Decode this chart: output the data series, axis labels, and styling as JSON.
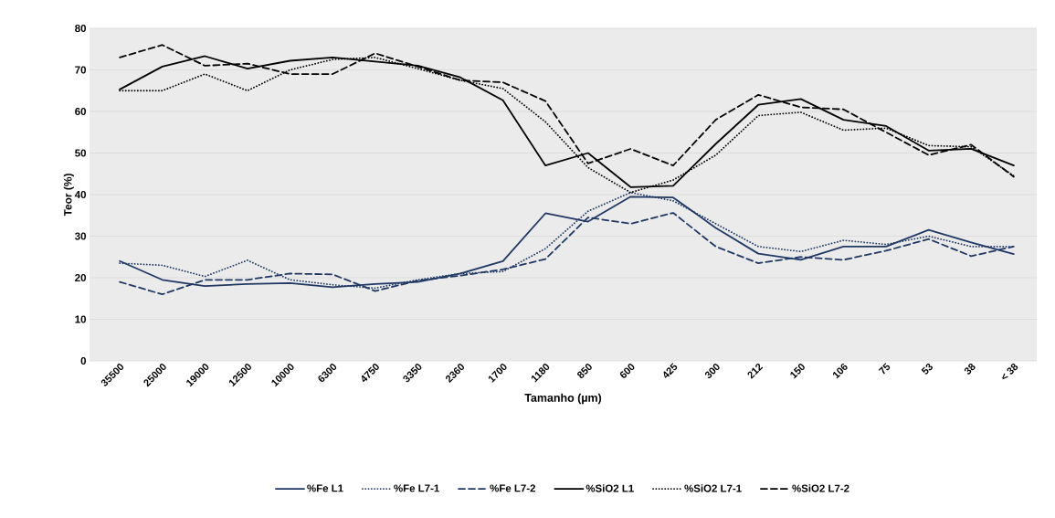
{
  "chart_data": {
    "type": "line",
    "xlabel": "Tamanho (µm)",
    "ylabel": "Teor (%)",
    "categories": [
      "35500",
      "25000",
      "19000",
      "12500",
      "10000",
      "6300",
      "4750",
      "3350",
      "2360",
      "1700",
      "1180",
      "850",
      "600",
      "425",
      "300",
      "212",
      "150",
      "106",
      "75",
      "53",
      "38",
      "< 38"
    ],
    "series": [
      {
        "name": "%Fe L1",
        "color": "#203864",
        "line_style": "solid",
        "values": [
          24,
          19.5,
          18,
          18.5,
          18.7,
          17.7,
          18.5,
          19,
          21,
          24,
          35.5,
          33.5,
          39.5,
          39.3,
          32,
          25.8,
          24.3,
          27.5,
          27.5,
          31.5,
          28.5,
          25.7
        ]
      },
      {
        "name": "%Fe L7-1",
        "color": "#203864",
        "line_style": "dotted",
        "values": [
          23.5,
          23,
          20.3,
          24.2,
          19.5,
          18.3,
          17.5,
          19.5,
          21,
          21.5,
          27,
          36,
          40.5,
          38.5,
          33,
          27.5,
          26.3,
          29,
          28,
          30,
          27.5,
          27.5
        ]
      },
      {
        "name": "%Fe L7-2",
        "color": "#203864",
        "line_style": "dashed",
        "values": [
          19,
          16,
          19.5,
          19.5,
          21,
          20.8,
          16.8,
          19.3,
          20.5,
          22,
          24.5,
          34.5,
          33,
          35.6,
          27.5,
          23.5,
          25,
          24.3,
          26.5,
          29.3,
          25.2,
          27.5
        ]
      },
      {
        "name": "%SiO2 L1",
        "color": "#000000",
        "line_style": "solid",
        "values": [
          65.3,
          70.8,
          73.3,
          70.3,
          72.2,
          73,
          72,
          71,
          68.2,
          62.7,
          47,
          50,
          41.8,
          42.1,
          52.2,
          61.6,
          63,
          58,
          56.5,
          50.6,
          51,
          47
        ]
      },
      {
        "name": "%SiO2 L7-1",
        "color": "#000000",
        "line_style": "dotted",
        "values": [
          65,
          65,
          69,
          65,
          70,
          72.5,
          73,
          70.3,
          67.5,
          65.5,
          57.5,
          46.5,
          40.5,
          43.5,
          49.5,
          59,
          59.8,
          55.5,
          56,
          51.8,
          51.5,
          44.5
        ]
      },
      {
        "name": "%SiO2 L7-2",
        "color": "#000000",
        "line_style": "dashed",
        "values": [
          73,
          76,
          71,
          71.5,
          69,
          69,
          74,
          70.8,
          67.5,
          67,
          62.5,
          47.5,
          51,
          47,
          58,
          64,
          61,
          60.5,
          55,
          49.5,
          52,
          44.3
        ]
      }
    ],
    "ylim": [
      0,
      80
    ],
    "yticks": [
      0,
      10,
      20,
      30,
      40,
      50,
      60,
      70,
      80
    ],
    "grid": "y",
    "legend": "bottom"
  }
}
